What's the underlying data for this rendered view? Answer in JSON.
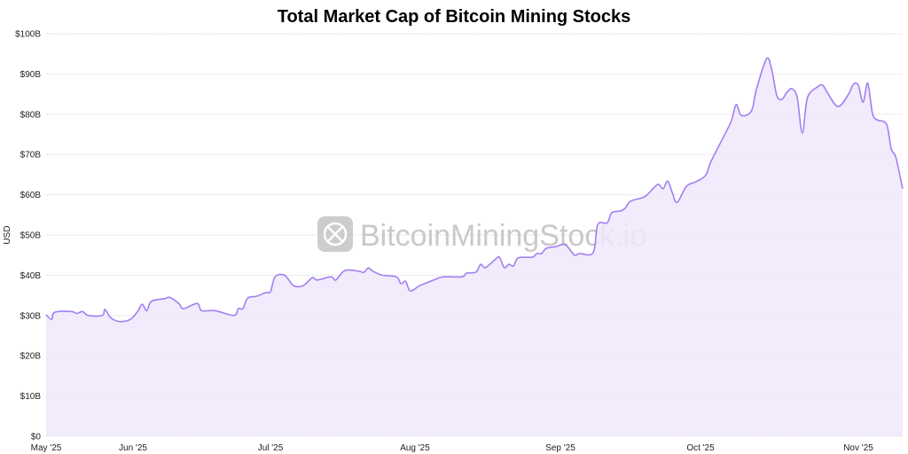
{
  "chart_data": {
    "type": "area",
    "title": "Total Market Cap of Bitcoin Mining Stocks",
    "xlabel": "",
    "ylabel": "USD",
    "ylim": [
      0,
      100
    ],
    "y_unit": "B",
    "y_ticks": [
      "$0",
      "$10B",
      "$20B",
      "$30B",
      "$40B",
      "$50B",
      "$60B",
      "$70B",
      "$80B",
      "$90B",
      "$100B"
    ],
    "x_ticks": [
      "May '25",
      "Jun '25",
      "Jul '25",
      "Aug '25",
      "Sep '25",
      "Oct '25",
      "Nov '25"
    ],
    "grid": true,
    "legend": "none",
    "colors": {
      "line": "#a27ff0",
      "fill": "#efe8fc"
    },
    "watermark": "BitcoinMiningStock.io",
    "series": [
      {
        "x": [
          "2025-05-01",
          "2025-05-03",
          "2025-05-04",
          "2025-05-10",
          "2025-05-12",
          "2025-05-14",
          "2025-05-16",
          "2025-05-21",
          "2025-05-22",
          "2025-05-24",
          "2025-05-27",
          "2025-05-31",
          "2025-06-02",
          "2025-06-03",
          "2025-06-04",
          "2025-06-05",
          "2025-06-08",
          "2025-06-09",
          "2025-06-11",
          "2025-06-12",
          "2025-06-15",
          "2025-06-16",
          "2025-06-19",
          "2025-06-23",
          "2025-06-24",
          "2025-06-25",
          "2025-06-26",
          "2025-06-28",
          "2025-06-30",
          "2025-07-01",
          "2025-07-02",
          "2025-07-04",
          "2025-07-06",
          "2025-07-08",
          "2025-07-10",
          "2025-07-11",
          "2025-07-14",
          "2025-07-15",
          "2025-07-17",
          "2025-07-20",
          "2025-07-21",
          "2025-07-22",
          "2025-07-23",
          "2025-07-25",
          "2025-07-28",
          "2025-07-29",
          "2025-07-30",
          "2025-07-31",
          "2025-08-02",
          "2025-08-05",
          "2025-08-07",
          "2025-08-11",
          "2025-08-12",
          "2025-08-14",
          "2025-08-15",
          "2025-08-16",
          "2025-08-18",
          "2025-08-19",
          "2025-08-20",
          "2025-08-21",
          "2025-08-22",
          "2025-08-23",
          "2025-08-26",
          "2025-08-27",
          "2025-08-28",
          "2025-08-29",
          "2025-08-31",
          "2025-09-02",
          "2025-09-04",
          "2025-09-05",
          "2025-09-08",
          "2025-09-09",
          "2025-09-11",
          "2025-09-12",
          "2025-09-14",
          "2025-09-15",
          "2025-09-16",
          "2025-09-19",
          "2025-09-21",
          "2025-09-22",
          "2025-09-23",
          "2025-09-24",
          "2025-09-25",
          "2025-09-26",
          "2025-09-28",
          "2025-09-30",
          "2025-10-02",
          "2025-10-03",
          "2025-10-05",
          "2025-10-07",
          "2025-10-08",
          "2025-10-09",
          "2025-10-11",
          "2025-10-12",
          "2025-10-14",
          "2025-10-15",
          "2025-10-16",
          "2025-10-17",
          "2025-10-18",
          "2025-10-19",
          "2025-10-20",
          "2025-10-21",
          "2025-10-22",
          "2025-10-24",
          "2025-10-25",
          "2025-10-26",
          "2025-10-28",
          "2025-10-30",
          "2025-10-31",
          "2025-11-01",
          "2025-11-02",
          "2025-11-03",
          "2025-11-04",
          "2025-11-05",
          "2025-11-07",
          "2025-11-08",
          "2025-11-09",
          "2025-11-10"
        ],
        "values": [
          30.2,
          29.0,
          30.8,
          31.0,
          30.5,
          31.0,
          30.0,
          30.0,
          31.5,
          29.5,
          28.5,
          29.0,
          31.0,
          32.8,
          31.2,
          33.5,
          34.2,
          34.5,
          33.0,
          31.7,
          33.0,
          31.2,
          31.2,
          30.0,
          31.7,
          31.7,
          34.3,
          34.8,
          35.7,
          35.9,
          39.6,
          40.0,
          37.4,
          37.4,
          39.4,
          38.8,
          39.6,
          38.8,
          41.2,
          41.0,
          40.7,
          41.8,
          41.0,
          40.0,
          39.6,
          37.9,
          38.5,
          36.1,
          37.4,
          38.8,
          39.6,
          39.6,
          40.5,
          40.8,
          42.7,
          41.9,
          43.8,
          44.5,
          41.9,
          42.7,
          42.3,
          44.3,
          44.5,
          45.4,
          45.4,
          46.7,
          47.1,
          47.6,
          45.0,
          45.4,
          45.6,
          52.6,
          53.0,
          55.5,
          56.0,
          56.8,
          58.4,
          59.5,
          61.7,
          62.6,
          61.5,
          63.4,
          60.4,
          58.1,
          62.1,
          63.2,
          64.8,
          68.1,
          73.1,
          78.2,
          82.4,
          79.7,
          80.8,
          86.3,
          93.8,
          91.0,
          84.6,
          83.7,
          85.5,
          86.3,
          84.1,
          75.3,
          84.1,
          86.8,
          87.2,
          85.2,
          81.9,
          84.8,
          87.4,
          87.2,
          83.0,
          87.7,
          80.2,
          78.6,
          77.5,
          71.4,
          69.2,
          61.5
        ]
      }
    ]
  }
}
